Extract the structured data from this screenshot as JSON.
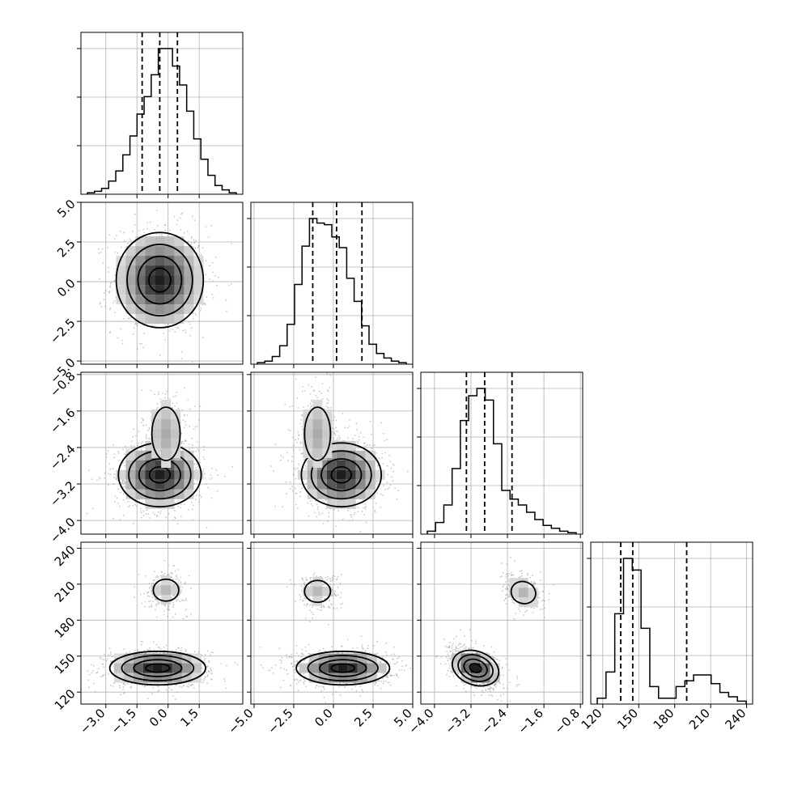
{
  "chart_data": {
    "type": "corner",
    "parameters": [
      {
        "label": "",
        "range": [
          -4.2,
          3.6
        ],
        "ticks": [
          -3.0,
          -1.5,
          0.0,
          1.5
        ],
        "tick_labels": [
          "−3.0",
          "−1.5",
          "0.0",
          "1.5"
        ],
        "quantiles": [
          -1.25,
          -0.4,
          0.45
        ],
        "hist_counts": [
          1,
          2,
          4,
          9,
          16,
          27,
          40,
          55,
          67,
          82,
          100,
          100,
          88,
          75,
          57,
          38,
          24,
          13,
          6,
          3,
          1
        ]
      },
      {
        "label": "",
        "range": [
          -5.2,
          5.0
        ],
        "ticks": [
          -5.0,
          -2.5,
          0.0,
          2.5,
          5.0
        ],
        "tick_labels": [
          "−5.0",
          "−2.5",
          "0.0",
          "2.5",
          "5.0"
        ],
        "quantiles": [
          -1.3,
          0.2,
          1.8
        ],
        "hist_counts": [
          1,
          2,
          5,
          12,
          26,
          52,
          77,
          95,
          92,
          91,
          83,
          76,
          56,
          41,
          25,
          13,
          7,
          4,
          2,
          1
        ]
      },
      {
        "label": "",
        "range": [
          -4.3,
          -0.75
        ],
        "ticks": [
          -4.0,
          -3.2,
          -2.4,
          -1.6,
          -0.8
        ],
        "tick_labels": [
          "−4.0",
          "−3.2",
          "−2.4",
          "−1.6",
          "−0.8"
        ],
        "quantiles": [
          -3.3,
          -2.9,
          -2.3
        ],
        "hist_counts": [
          2,
          8,
          20,
          45,
          78,
          95,
          100,
          92,
          62,
          30,
          24,
          20,
          15,
          10,
          6,
          4,
          2,
          1
        ]
      },
      {
        "label": "",
        "range": [
          110,
          245
        ],
        "ticks": [
          120,
          150,
          180,
          210,
          240
        ],
        "tick_labels": [
          "120",
          "150",
          "180",
          "210",
          "240"
        ],
        "quantiles": [
          135,
          145,
          190
        ],
        "hist_counts": [
          4,
          22,
          62,
          100,
          92,
          52,
          12,
          4,
          4,
          12,
          16,
          20,
          20,
          14,
          8,
          5,
          2
        ]
      }
    ],
    "pairs": [
      {
        "x": 0,
        "y": 1,
        "modes": [
          {
            "cx": -0.4,
            "cy": 0.1,
            "sx": 1.0,
            "sy": 1.5,
            "w": 1.0
          }
        ]
      },
      {
        "x": 0,
        "y": 2,
        "modes": [
          {
            "cx": -0.4,
            "cy": -3.0,
            "sx": 0.95,
            "sy": 0.35,
            "w": 1.0
          },
          {
            "cx": -0.1,
            "cy": -2.1,
            "sx": 0.5,
            "sy": 0.45,
            "w": 0.35
          }
        ]
      },
      {
        "x": 1,
        "y": 2,
        "modes": [
          {
            "cx": 0.5,
            "cy": -3.0,
            "sx": 1.2,
            "sy": 0.35,
            "w": 1.0
          },
          {
            "cx": -1.0,
            "cy": -2.1,
            "sx": 0.6,
            "sy": 0.45,
            "w": 0.35
          }
        ]
      },
      {
        "x": 0,
        "y": 3,
        "modes": [
          {
            "cx": -0.5,
            "cy": 140,
            "sx": 1.1,
            "sy": 7,
            "w": 1.0
          },
          {
            "cx": -0.1,
            "cy": 205,
            "sx": 0.45,
            "sy": 7,
            "w": 0.28
          }
        ]
      },
      {
        "x": 1,
        "y": 3,
        "modes": [
          {
            "cx": 0.6,
            "cy": 140,
            "sx": 1.4,
            "sy": 7,
            "w": 1.0
          },
          {
            "cx": -1.0,
            "cy": 204,
            "sx": 0.6,
            "sy": 7,
            "w": 0.28
          }
        ]
      },
      {
        "x": 2,
        "y": 3,
        "modes": [
          {
            "cx": -3.1,
            "cy": 140,
            "sx": 0.25,
            "sy": 7,
            "w": 1.0,
            "tilt": -0.5
          },
          {
            "cx": -2.05,
            "cy": 203,
            "sx": 0.2,
            "sy": 7,
            "w": 0.3,
            "tilt": -0.4
          }
        ]
      }
    ],
    "grid": true,
    "legend": "none"
  }
}
